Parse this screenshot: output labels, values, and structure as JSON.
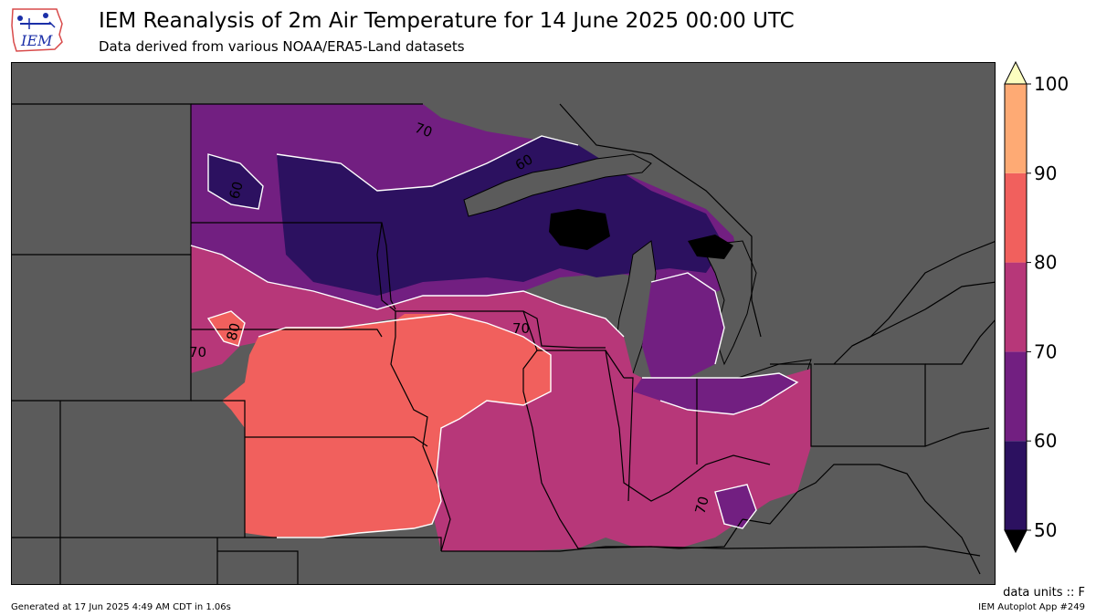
{
  "header": {
    "title": "IEM Reanalysis of 2m Air Temperature for 14 June 2025 00:00 UTC",
    "subtitle": "Data derived from various NOAA/ERA5-Land datasets",
    "logo_text": "IEM"
  },
  "legend": {
    "levels": [
      50,
      60,
      70,
      80,
      90,
      100
    ],
    "labels": [
      "50",
      "60",
      "70",
      "80",
      "90",
      "100"
    ],
    "colors": [
      "#2c1160",
      "#721f81",
      "#b73779",
      "#f1605d",
      "#feaa74"
    ],
    "under_color": "#000000",
    "over_color": "#fcfdbf"
  },
  "map": {
    "background": "#5b5b5b",
    "contour_labels": [
      "70",
      "70",
      "60",
      "60",
      "80",
      "70",
      "70"
    ]
  },
  "footer": {
    "units": "data units :: F",
    "generated": "Generated at 17 Jun 2025 4:49 AM CDT in 1.06s",
    "app": "IEM Autoplot App #249"
  }
}
